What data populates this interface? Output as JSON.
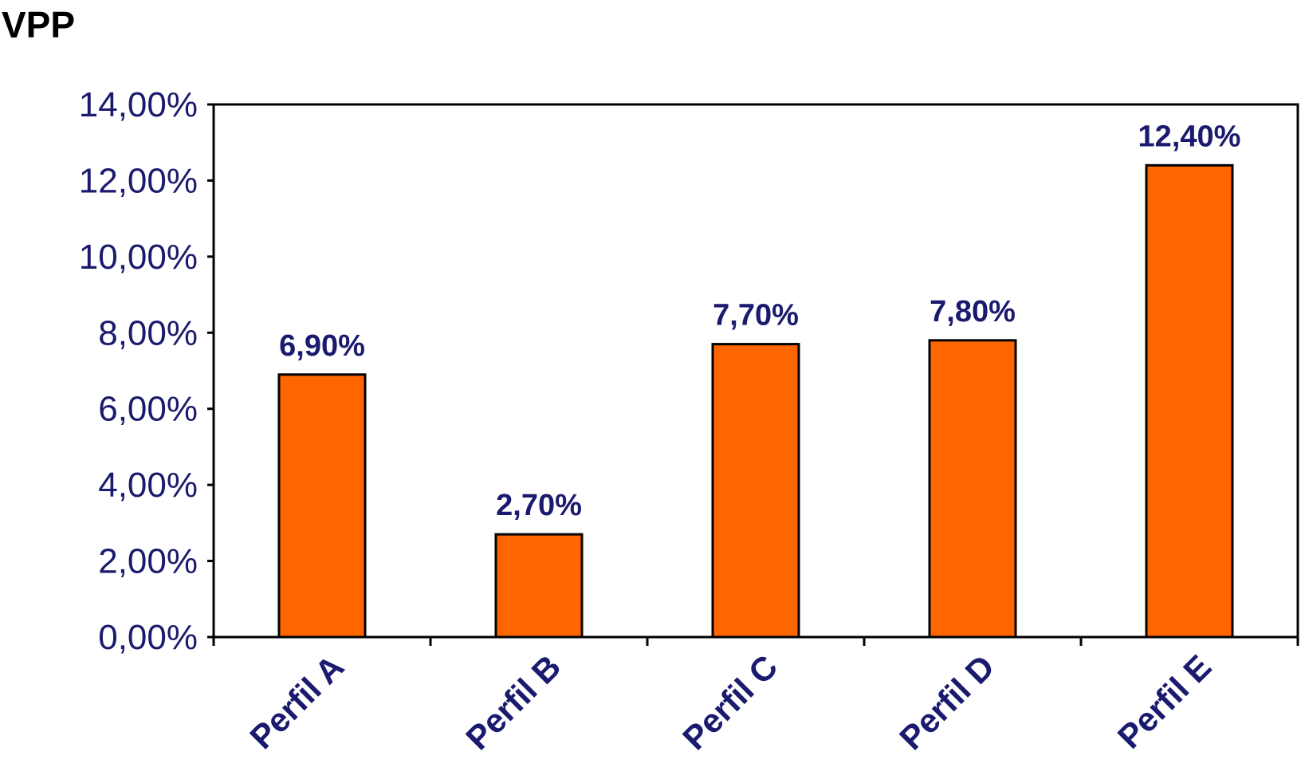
{
  "chart_data": {
    "type": "bar",
    "title": "VPP",
    "xlabel": "",
    "ylabel": "",
    "categories": [
      "Perfil A",
      "Perfil B",
      "Perfil C",
      "Perfil D",
      "Perfil E"
    ],
    "values": [
      6.9,
      2.7,
      7.7,
      7.8,
      12.4
    ],
    "value_labels": [
      "6,90%",
      "2,70%",
      "7,70%",
      "7,80%",
      "12,40%"
    ],
    "ylim": [
      0,
      14
    ],
    "yticks": [
      0,
      2,
      4,
      6,
      8,
      10,
      12,
      14
    ],
    "ytick_labels": [
      "0,00%",
      "2,00%",
      "4,00%",
      "6,00%",
      "8,00%",
      "10,00%",
      "12,00%",
      "14,00%"
    ],
    "grid": false,
    "legend": "none",
    "colors": {
      "bar": "#ff6600",
      "bar_stroke": "#000000",
      "text": "#1a1a6e",
      "title": "#000000"
    }
  }
}
